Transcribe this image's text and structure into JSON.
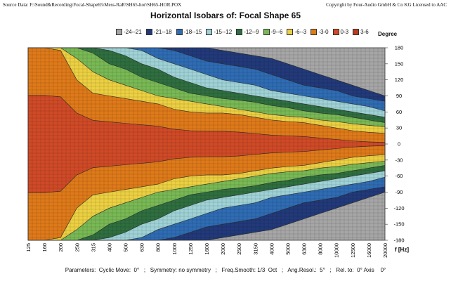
{
  "header": {
    "source": "Source Data:  F:\\Sound&Recording\\Focal-Shape65\\Mess-RaR\\SH65-hor\\SH65-HOR.POX",
    "copyright": "Copyright by Four-Audio GmbH & Co KG   Licensed to AAC"
  },
  "footer": {
    "parameters": "Parameters:  Cyclic Move:  0°   ;   Symmetry: no symmetry   ;   Freq.Smooth: 1/3  Oct   ;   Ang.Resol.:  5°   ;   Rel. to:  0° Axis    0°"
  },
  "chart_data": {
    "type": "heatmap",
    "title": "Horizontal Isobars of:   Focal  Shape 65",
    "xlabel": "f [Hz]",
    "ylabel": "Degree",
    "x_scale": "log",
    "x_ticks": [
      "125",
      "160",
      "200",
      "250",
      "315",
      "400",
      "500",
      "630",
      "800",
      "1000",
      "1250",
      "1600",
      "2000",
      "2500",
      "3150",
      "4000",
      "5000",
      "6300",
      "8000",
      "10000",
      "12500",
      "16000",
      "20000"
    ],
    "y_ticks": [
      180,
      150,
      120,
      90,
      60,
      30,
      0,
      -30,
      -60,
      -90,
      -120,
      -150,
      -180
    ],
    "ylim": [
      -180,
      180
    ],
    "legend": [
      {
        "label": "-24--21",
        "color": "#a6a6a6"
      },
      {
        "label": "-21--18",
        "color": "#223a7a"
      },
      {
        "label": "-18--15",
        "color": "#2f6cb3"
      },
      {
        "label": "-15--12",
        "color": "#9fd2d6"
      },
      {
        "label": "-12--9",
        "color": "#2f6f3f"
      },
      {
        "label": "-9--6",
        "color": "#79b955"
      },
      {
        "label": "-6--3",
        "color": "#ecd042"
      },
      {
        "label": "-3-0",
        "color": "#de7a1a"
      },
      {
        "label": "0-3",
        "color": "#cf4a27"
      },
      {
        "label": "3-6",
        "color": "#b83a22"
      }
    ],
    "contour_boundaries_deg": {
      "frequencies": [
        "125",
        "160",
        "200",
        "250",
        "315",
        "400",
        "500",
        "630",
        "800",
        "1000",
        "1250",
        "1600",
        "2000",
        "2500",
        "3150",
        "4000",
        "5000",
        "6300",
        "8000",
        "10000",
        "12500",
        "16000",
        "20000"
      ],
      "-3dB": [
        180,
        180,
        175,
        120,
        95,
        90,
        85,
        80,
        75,
        65,
        60,
        58,
        58,
        55,
        50,
        45,
        42,
        40,
        35,
        30,
        25,
        22,
        20
      ],
      "-6dB": [
        180,
        180,
        180,
        160,
        135,
        120,
        110,
        100,
        90,
        85,
        80,
        75,
        70,
        65,
        60,
        55,
        52,
        50,
        45,
        42,
        38,
        35,
        32
      ],
      "-9dB": [
        180,
        180,
        180,
        180,
        170,
        150,
        140,
        125,
        115,
        105,
        95,
        90,
        85,
        82,
        78,
        72,
        68,
        62,
        58,
        55,
        50,
        45,
        40
      ],
      "-12dB": [
        180,
        180,
        180,
        180,
        180,
        175,
        165,
        150,
        140,
        125,
        115,
        105,
        100,
        95,
        90,
        85,
        80,
        75,
        70,
        65,
        60,
        55,
        50
      ],
      "-15dB": [
        180,
        180,
        180,
        180,
        180,
        180,
        180,
        175,
        160,
        150,
        140,
        130,
        120,
        115,
        110,
        100,
        95,
        90,
        85,
        80,
        75,
        70,
        62
      ],
      "-18dB": [
        180,
        180,
        180,
        180,
        180,
        180,
        180,
        180,
        180,
        175,
        165,
        155,
        150,
        145,
        140,
        130,
        120,
        110,
        105,
        100,
        90,
        85,
        80
      ],
      "-21dB": [
        180,
        180,
        180,
        180,
        180,
        180,
        180,
        180,
        180,
        180,
        180,
        180,
        175,
        170,
        165,
        160,
        150,
        140,
        130,
        120,
        110,
        100,
        90
      ]
    }
  }
}
